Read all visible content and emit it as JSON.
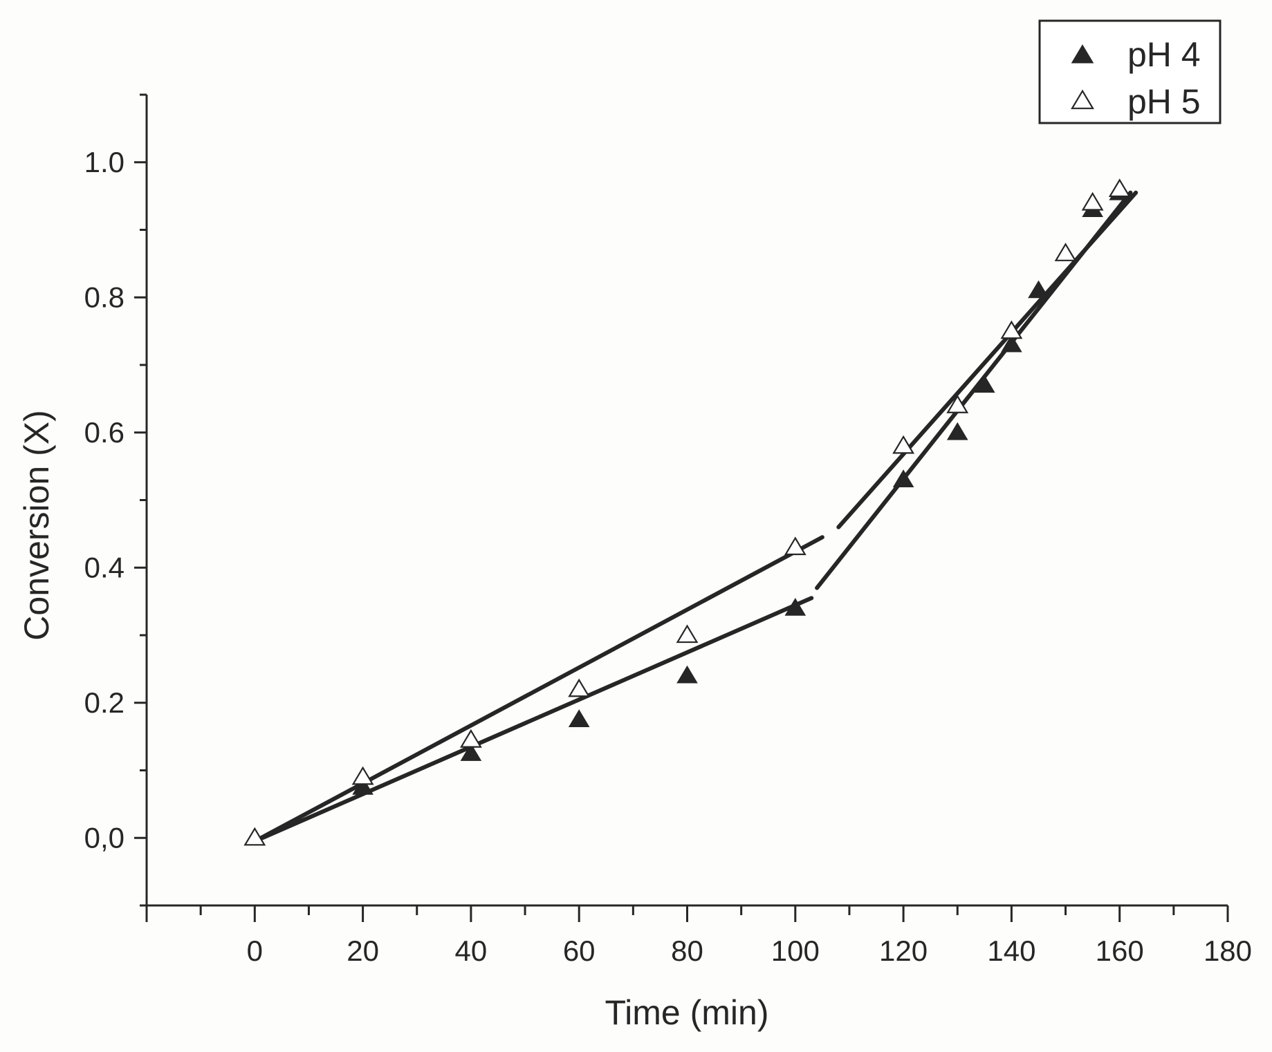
{
  "chart_data": {
    "type": "scatter",
    "title": "",
    "xlabel": "Time (min)",
    "ylabel": "Conversion (X)",
    "xlim": [
      -20,
      180
    ],
    "ylim": [
      -0.1,
      1.1
    ],
    "xticks": [
      0,
      20,
      40,
      60,
      80,
      100,
      120,
      140,
      160,
      180
    ],
    "xtick_labels": [
      "0",
      "20",
      "40",
      "60",
      "80",
      "100",
      "120",
      "140",
      "160",
      "180"
    ],
    "yticks": [
      0.0,
      0.2,
      0.4,
      0.6,
      0.8,
      1.0
    ],
    "ytick_labels": [
      "0,0",
      "0.2",
      "0.4",
      "0.6",
      "0.8",
      "1.0"
    ],
    "legend_position": "top-right",
    "colors": {
      "ink": "#262626",
      "background": "#ffffff"
    },
    "series": [
      {
        "name": "pH 4",
        "marker": "filled-triangle",
        "x": [
          0,
          20,
          40,
          60,
          80,
          100,
          120,
          130,
          135,
          140,
          145,
          155,
          160
        ],
        "y": [
          0.0,
          0.075,
          0.125,
          0.175,
          0.24,
          0.34,
          0.53,
          0.6,
          0.67,
          0.73,
          0.81,
          0.93,
          0.955
        ],
        "fit_lines": [
          {
            "x": [
              0,
              103
            ],
            "y": [
              -0.005,
              0.355
            ]
          },
          {
            "x": [
              104,
              162
            ],
            "y": [
              0.37,
              0.955
            ]
          }
        ]
      },
      {
        "name": "pH 5",
        "marker": "open-triangle",
        "x": [
          0,
          20,
          40,
          60,
          80,
          100,
          120,
          130,
          140,
          150,
          155,
          160
        ],
        "y": [
          0.0,
          0.09,
          0.145,
          0.22,
          0.3,
          0.43,
          0.58,
          0.64,
          0.75,
          0.865,
          0.94,
          0.96
        ],
        "fit_lines": [
          {
            "x": [
              0,
              105
            ],
            "y": [
              -0.005,
              0.445
            ]
          },
          {
            "x": [
              108,
              163
            ],
            "y": [
              0.46,
              0.955
            ]
          }
        ]
      }
    ]
  }
}
